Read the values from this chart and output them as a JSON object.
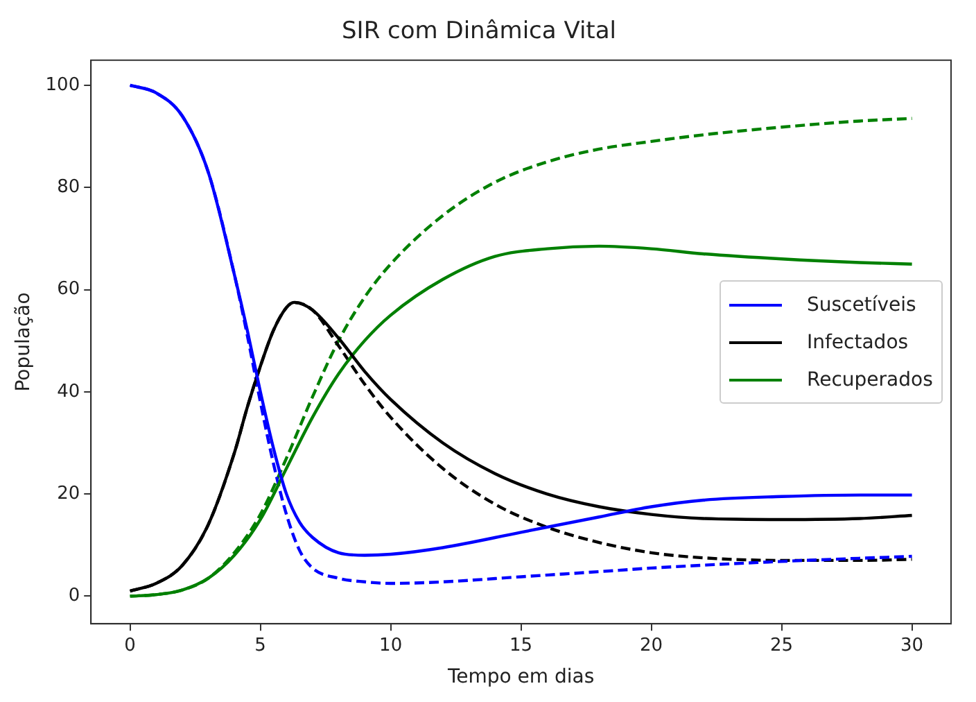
{
  "chart_data": {
    "type": "line",
    "title": "SIR com Dinâmica Vital",
    "xlabel": "Tempo em dias",
    "ylabel": "População",
    "xlim": [
      -1.5,
      31.5
    ],
    "xticks": [
      0,
      5,
      10,
      15,
      20,
      25,
      30
    ],
    "ylim": [
      -5.4,
      104.9
    ],
    "yticks": [
      0,
      20,
      40,
      60,
      80,
      100
    ],
    "grid": false,
    "legend": "right",
    "marker": "none",
    "series": [
      {
        "name": "Suscetíveis",
        "color": "#0000ff",
        "line_style": "solid",
        "x": [
          0,
          1,
          2,
          3,
          4,
          4.5,
          5,
          5.5,
          6,
          6.5,
          7,
          8,
          9,
          10,
          12,
          15,
          18,
          20,
          22,
          25,
          28,
          30
        ],
        "values": [
          100,
          98.5,
          94,
          83,
          63,
          52,
          40,
          29,
          20,
          14.5,
          11.5,
          8.5,
          8,
          8.2,
          9.5,
          12.5,
          15.5,
          17.5,
          18.8,
          19.5,
          19.8,
          19.8
        ]
      },
      {
        "name": "Infectados",
        "color": "#000000",
        "line_style": "solid",
        "x": [
          0,
          1,
          2,
          3,
          4,
          4.5,
          5,
          5.5,
          6,
          6.3,
          7,
          8,
          9,
          10,
          12,
          14,
          16,
          18,
          20,
          22,
          25,
          28,
          30
        ],
        "values": [
          1,
          2.5,
          6,
          14,
          28,
          37,
          45,
          52,
          56.5,
          57.5,
          56,
          50.5,
          44,
          38.5,
          30,
          24,
          20,
          17.5,
          16,
          15.2,
          15,
          15.2,
          15.8
        ]
      },
      {
        "name": "Recuperados",
        "color": "#008000",
        "line_style": "solid",
        "x": [
          0,
          1,
          2,
          3,
          4,
          5,
          6,
          7,
          8,
          9,
          10,
          12,
          14,
          16,
          18,
          20,
          22,
          25,
          28,
          30
        ],
        "values": [
          0,
          0.3,
          1.2,
          3.5,
          8,
          15,
          25,
          35,
          43.5,
          50,
          55,
          62,
          66.5,
          68,
          68.5,
          68,
          67,
          66,
          65.3,
          65
        ]
      },
      {
        "color": "#0000ff",
        "line_style": "dashed",
        "x": [
          0,
          1,
          2,
          3,
          4,
          4.5,
          5,
          5.5,
          6,
          6.5,
          7,
          8,
          9,
          10,
          12,
          15,
          18,
          20,
          25,
          30
        ],
        "values": [
          100,
          98.5,
          94,
          83,
          63,
          51,
          38,
          26,
          16,
          9,
          5.5,
          3.5,
          2.8,
          2.5,
          2.8,
          3.8,
          4.8,
          5.5,
          6.8,
          7.8
        ]
      },
      {
        "color": "#000000",
        "line_style": "dashed",
        "x": [
          0,
          1,
          2,
          3,
          4,
          4.5,
          5,
          5.5,
          6,
          6.3,
          7,
          8,
          9,
          10,
          12,
          14,
          16,
          18,
          20,
          22,
          25,
          28,
          30
        ],
        "values": [
          1,
          2.5,
          6,
          14,
          28,
          37,
          45,
          52,
          56.5,
          57.5,
          56,
          49,
          41.5,
          35,
          25,
          18,
          13.5,
          10.5,
          8.5,
          7.5,
          7,
          7,
          7.2
        ]
      },
      {
        "color": "#008000",
        "line_style": "dashed",
        "x": [
          0,
          1,
          2,
          3,
          4,
          5,
          6,
          7,
          8,
          9,
          10,
          12,
          14,
          16,
          18,
          20,
          22,
          25,
          28,
          30
        ],
        "values": [
          0,
          0.3,
          1.2,
          3.5,
          8.5,
          16,
          27,
          39,
          50,
          58.5,
          65,
          74.5,
          81,
          85,
          87.5,
          89,
          90.3,
          91.8,
          93,
          93.5
        ]
      }
    ]
  }
}
